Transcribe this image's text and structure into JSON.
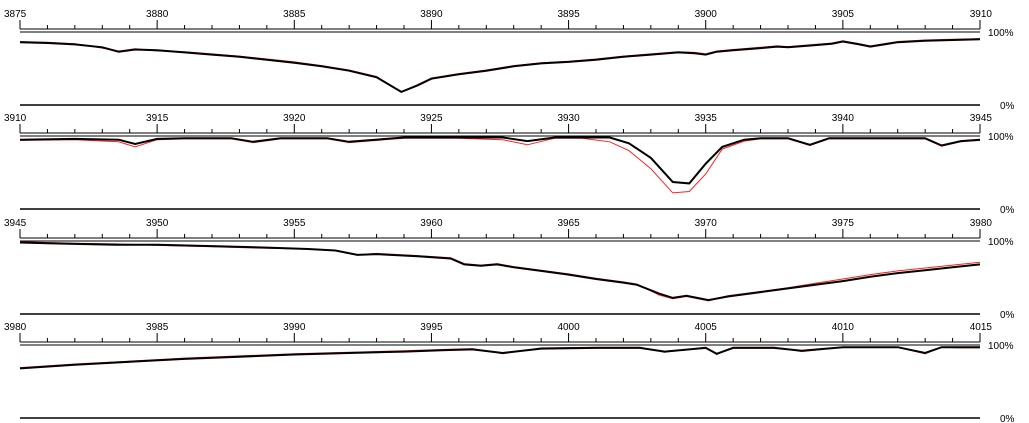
{
  "chart_data": {
    "type": "line",
    "colors": {
      "observed": "#ff2020",
      "model": "#000000",
      "axis": "#000000"
    },
    "y_labels": [
      "100%",
      "0%"
    ],
    "ylim": [
      0,
      1
    ],
    "panels": [
      {
        "xlim": [
          3875,
          3910
        ],
        "tick_labels": [
          "3875",
          "3880",
          "3885",
          "3890",
          "3895",
          "3900",
          "3905",
          "3910"
        ],
        "x": [
          3875,
          3876,
          3877,
          3878,
          3878.6,
          3879.2,
          3880,
          3881,
          3882,
          3883,
          3884,
          3885,
          3886,
          3887,
          3888,
          3888.9,
          3889.5,
          3890,
          3891,
          3892,
          3893,
          3894,
          3895,
          3896,
          3897,
          3898,
          3899,
          3899.6,
          3900,
          3900.4,
          3901,
          3902,
          3902.6,
          3903,
          3904,
          3904.6,
          3905,
          3905.6,
          3906,
          3907,
          3908,
          3909,
          3910
        ],
        "model": [
          0.86,
          0.85,
          0.83,
          0.79,
          0.73,
          0.76,
          0.75,
          0.72,
          0.69,
          0.66,
          0.62,
          0.58,
          0.53,
          0.47,
          0.38,
          0.18,
          0.27,
          0.36,
          0.42,
          0.47,
          0.53,
          0.57,
          0.59,
          0.62,
          0.66,
          0.69,
          0.72,
          0.71,
          0.69,
          0.73,
          0.75,
          0.78,
          0.8,
          0.79,
          0.82,
          0.84,
          0.87,
          0.83,
          0.8,
          0.86,
          0.88,
          0.89,
          0.9
        ],
        "observed": [
          0.87,
          0.86,
          0.84,
          0.78,
          0.74,
          0.77,
          0.74,
          0.73,
          0.7,
          0.67,
          0.63,
          0.59,
          0.54,
          0.48,
          0.39,
          0.18,
          0.28,
          0.37,
          0.43,
          0.48,
          0.54,
          0.58,
          0.6,
          0.63,
          0.67,
          0.7,
          0.73,
          0.72,
          0.7,
          0.74,
          0.76,
          0.79,
          0.81,
          0.8,
          0.83,
          0.85,
          0.88,
          0.84,
          0.81,
          0.87,
          0.89,
          0.9,
          0.91
        ]
      },
      {
        "xlim": [
          3910,
          3945
        ],
        "tick_labels": [
          "3910",
          "3915",
          "3920",
          "3925",
          "3930",
          "3935",
          "3940",
          "3945"
        ],
        "x": [
          3910,
          3912,
          3913.6,
          3914.2,
          3915,
          3916,
          3917.7,
          3918.5,
          3919.5,
          3921.2,
          3922,
          3924,
          3926,
          3927.6,
          3928.5,
          3929.5,
          3930.5,
          3931.5,
          3932.2,
          3933,
          3933.8,
          3934.4,
          3935,
          3935.6,
          3936.4,
          3937,
          3938,
          3938.8,
          3939.5,
          3940.5,
          3942,
          3943,
          3943.6,
          3944.3,
          3945
        ],
        "model": [
          0.95,
          0.96,
          0.95,
          0.89,
          0.96,
          0.97,
          0.97,
          0.92,
          0.97,
          0.97,
          0.92,
          0.98,
          0.98,
          0.98,
          0.93,
          0.98,
          0.98,
          0.98,
          0.9,
          0.7,
          0.37,
          0.35,
          0.62,
          0.85,
          0.95,
          0.97,
          0.97,
          0.88,
          0.97,
          0.97,
          0.97,
          0.97,
          0.87,
          0.93,
          0.95
        ],
        "observed": [
          0.94,
          0.95,
          0.92,
          0.85,
          0.95,
          0.96,
          0.96,
          0.91,
          0.96,
          0.96,
          0.91,
          0.97,
          0.97,
          0.95,
          0.88,
          0.97,
          0.97,
          0.92,
          0.8,
          0.55,
          0.22,
          0.24,
          0.48,
          0.82,
          0.93,
          0.96,
          0.96,
          0.87,
          0.96,
          0.96,
          0.96,
          0.96,
          0.86,
          0.92,
          0.94
        ]
      },
      {
        "xlim": [
          3945,
          3980
        ],
        "tick_labels": [
          "3945",
          "3950",
          "3955",
          "3960",
          "3965",
          "3970",
          "3975",
          "3980"
        ],
        "x": [
          3945,
          3946,
          3947,
          3948.5,
          3950,
          3952,
          3954,
          3955.5,
          3956.5,
          3957.3,
          3958,
          3959.5,
          3960.7,
          3961.2,
          3961.8,
          3962.4,
          3963,
          3964,
          3965,
          3966,
          3967,
          3967.5,
          3968.3,
          3968.8,
          3969.3,
          3970.1,
          3970.8,
          3972,
          3973,
          3974,
          3975,
          3976,
          3977,
          3978,
          3979,
          3980
        ],
        "model": [
          0.98,
          0.97,
          0.96,
          0.95,
          0.95,
          0.93,
          0.91,
          0.89,
          0.87,
          0.81,
          0.82,
          0.79,
          0.76,
          0.68,
          0.66,
          0.68,
          0.64,
          0.59,
          0.54,
          0.48,
          0.43,
          0.4,
          0.28,
          0.22,
          0.25,
          0.19,
          0.24,
          0.3,
          0.35,
          0.4,
          0.45,
          0.51,
          0.56,
          0.6,
          0.64,
          0.68
        ],
        "observed": [
          0.99,
          0.98,
          0.97,
          0.96,
          0.94,
          0.92,
          0.9,
          0.89,
          0.87,
          0.81,
          0.83,
          0.8,
          0.77,
          0.69,
          0.67,
          0.69,
          0.65,
          0.6,
          0.55,
          0.49,
          0.44,
          0.41,
          0.26,
          0.21,
          0.24,
          0.18,
          0.25,
          0.31,
          0.36,
          0.42,
          0.48,
          0.54,
          0.59,
          0.63,
          0.67,
          0.71
        ]
      },
      {
        "xlim": [
          3980,
          4015
        ],
        "tick_labels": [
          "3980",
          "3985",
          "3990",
          "3995",
          "4000",
          "4005",
          "4010",
          "4015"
        ],
        "x": [
          3980,
          3982,
          3984,
          3986,
          3988,
          3990,
          3992,
          3994,
          3995.5,
          3996.5,
          3997.6,
          3999,
          4001,
          4002.6,
          4003.5,
          4005,
          4005.4,
          4006,
          4007.5,
          4008.5,
          4010,
          4012,
          4013,
          4013.6,
          4014.3,
          4015
        ],
        "model": [
          0.68,
          0.73,
          0.77,
          0.81,
          0.84,
          0.87,
          0.89,
          0.91,
          0.93,
          0.94,
          0.89,
          0.95,
          0.96,
          0.96,
          0.91,
          0.96,
          0.88,
          0.96,
          0.96,
          0.92,
          0.97,
          0.97,
          0.89,
          0.97,
          0.97,
          0.97
        ],
        "observed": [
          0.69,
          0.74,
          0.78,
          0.82,
          0.85,
          0.88,
          0.9,
          0.92,
          0.94,
          0.95,
          0.88,
          0.96,
          0.97,
          0.97,
          0.9,
          0.97,
          0.87,
          0.97,
          0.97,
          0.91,
          0.97,
          0.97,
          0.88,
          0.97,
          0.96,
          0.96
        ]
      }
    ]
  }
}
